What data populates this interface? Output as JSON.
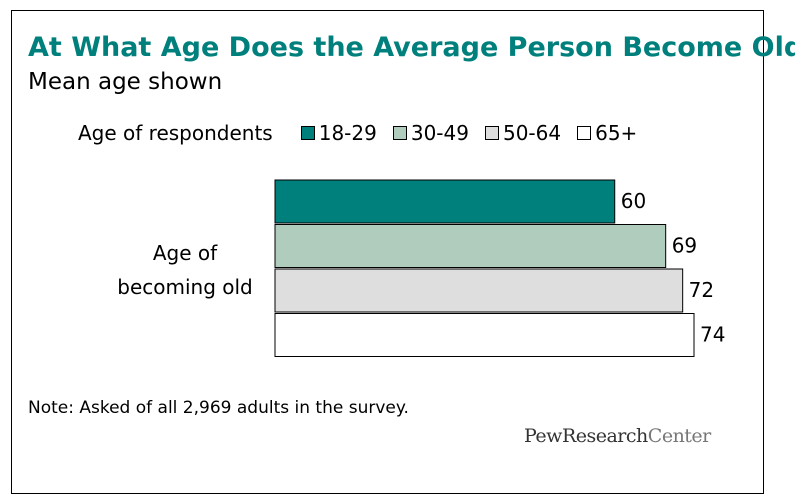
{
  "chart_data": {
    "type": "bar",
    "orientation": "horizontal",
    "title": "At What Age Does the Average Person Become Old?",
    "subtitle": "Mean age shown",
    "legend_title": "Age of respondents",
    "category_label": "Age of becoming old",
    "category_label_lines": [
      "Age of",
      "becoming old"
    ],
    "series": [
      {
        "name": "18-29",
        "value": 60,
        "color": "#00807c"
      },
      {
        "name": "30-49",
        "value": 69,
        "color": "#b0ccbc"
      },
      {
        "name": "50-64",
        "value": 72,
        "color": "#dedede"
      },
      {
        "name": "65+",
        "value": 74,
        "color": "#ffffff"
      }
    ],
    "xlim": [
      0,
      74
    ],
    "grid": false,
    "legend_position": "top"
  },
  "note": "Note: Asked of all 2,969 adults in the survey.",
  "logo": {
    "part1": "PewResearch",
    "part2": "Center"
  }
}
